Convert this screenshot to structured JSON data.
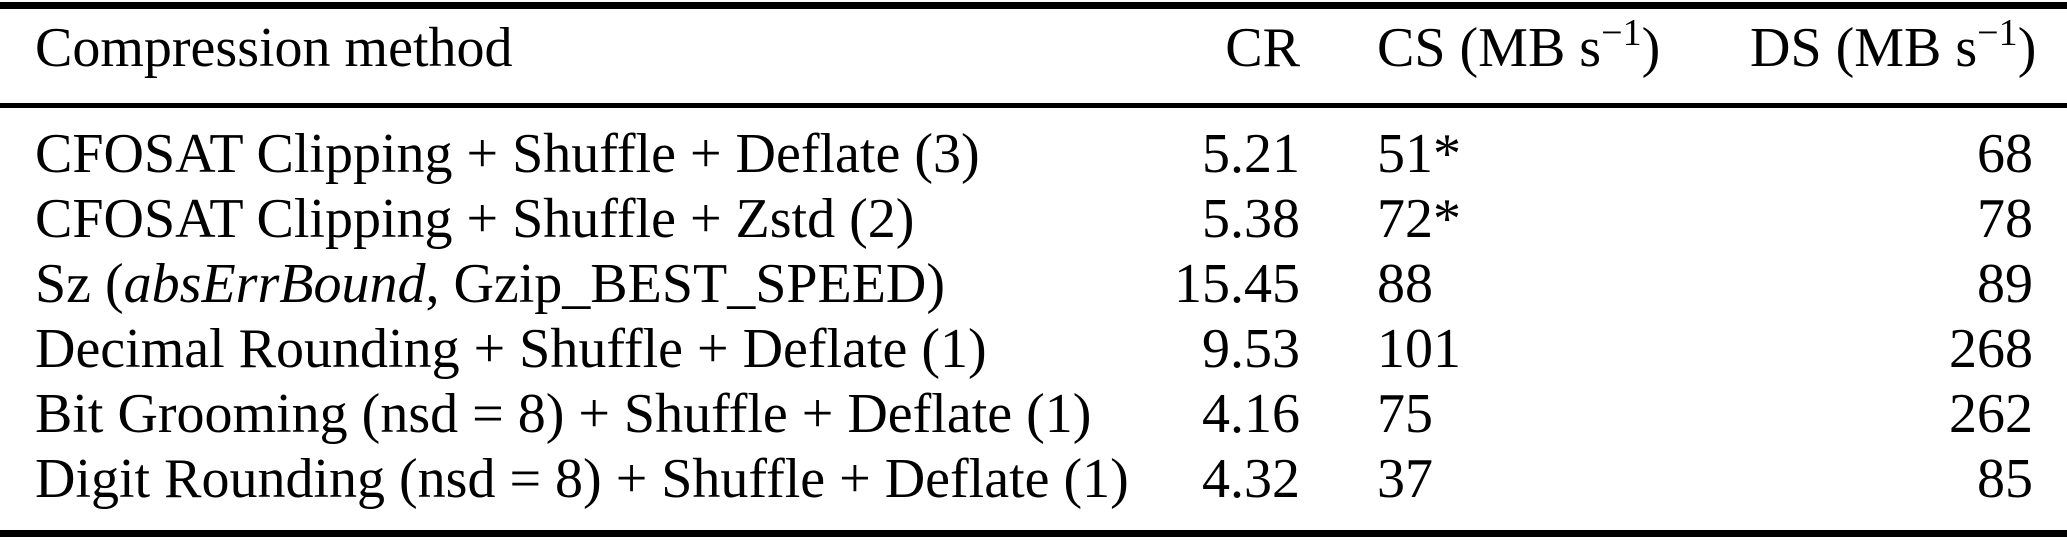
{
  "page": {
    "background_color": "#ffffff",
    "text_color": "#000000"
  },
  "table": {
    "header": {
      "method": "Compression method",
      "cr": "CR",
      "cs_prefix": "CS (MB s",
      "cs_sup": "−1",
      "cs_suffix": ")",
      "ds_prefix": "DS (MB s",
      "ds_sup": "−1",
      "ds_suffix": ")"
    },
    "rows": [
      {
        "method_parts": [
          {
            "text": "CFOSAT Clipping + Shuffle + Deflate (3)",
            "italic": false
          }
        ],
        "cr": "5.21",
        "cs": "51*",
        "ds": "68"
      },
      {
        "method_parts": [
          {
            "text": "CFOSAT Clipping + Shuffle + Zstd (2)",
            "italic": false
          }
        ],
        "cr": "5.38",
        "cs": "72*",
        "ds": "78"
      },
      {
        "method_parts": [
          {
            "text": "Sz (",
            "italic": false
          },
          {
            "text": "absErrBound",
            "italic": true
          },
          {
            "text": ", Gzip_BEST_SPEED)",
            "italic": false
          }
        ],
        "cr": "15.45",
        "cs": "88",
        "ds": "89"
      },
      {
        "method_parts": [
          {
            "text": "Decimal Rounding + Shuffle + Deflate (1)",
            "italic": false
          }
        ],
        "cr": "9.53",
        "cs": "101",
        "ds": "268"
      },
      {
        "method_parts": [
          {
            "text": "Bit Grooming (nsd = 8) + Shuffle + Deflate (1)",
            "italic": false
          }
        ],
        "cr": "4.16",
        "cs": "75",
        "ds": "262"
      },
      {
        "method_parts": [
          {
            "text": "Digit Rounding (nsd = 8) + Shuffle + Deflate (1)",
            "italic": false
          }
        ],
        "cr": "4.32",
        "cs": "37",
        "ds": "85"
      }
    ]
  }
}
